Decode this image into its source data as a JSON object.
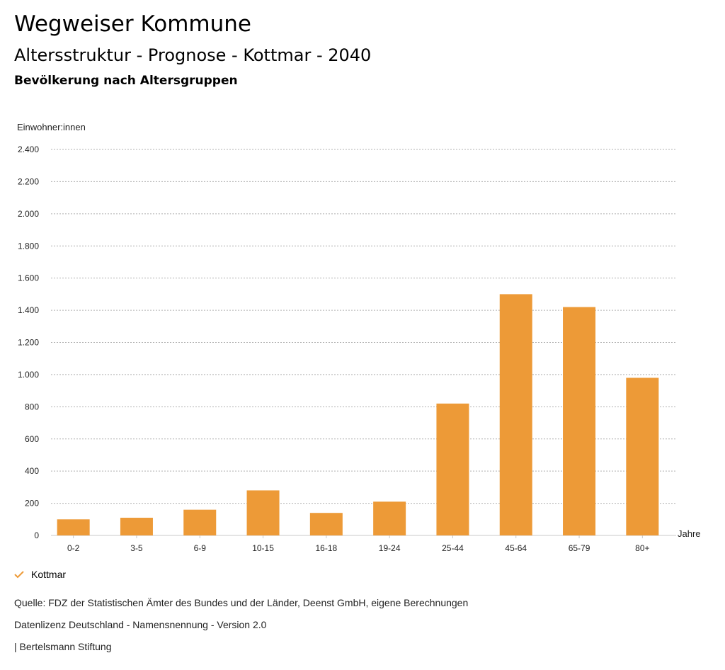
{
  "header": {
    "title": "Wegweiser Kommune",
    "subtitle": "Altersstruktur - Prognose - Kottmar - 2040",
    "heading": "Bevölkerung nach Altersgruppen"
  },
  "chart_data": {
    "type": "bar",
    "ylabel": "Einwohner:innen",
    "xlabel": "Jahre",
    "categories": [
      "0-2",
      "3-5",
      "6-9",
      "10-15",
      "16-18",
      "19-24",
      "25-44",
      "45-64",
      "65-79",
      "80+"
    ],
    "series": [
      {
        "name": "Kottmar",
        "values": [
          100,
          110,
          160,
          280,
          140,
          210,
          820,
          1500,
          1420,
          980
        ]
      }
    ],
    "ylim": [
      0,
      2400
    ],
    "yticks": [
      0,
      200,
      400,
      600,
      800,
      1000,
      1200,
      1400,
      1600,
      1800,
      2000,
      2200,
      2400
    ],
    "ytick_labels": [
      "0",
      "200",
      "400",
      "600",
      "800",
      "1.000",
      "1.200",
      "1.400",
      "1.600",
      "1.800",
      "2.000",
      "2.200",
      "2.400"
    ],
    "bar_color": "#ed9a37",
    "grid": true,
    "legend_position": "bottom-left"
  },
  "legend": {
    "label": "Kottmar"
  },
  "footer": {
    "source": "Quelle: FDZ der Statistischen Ämter des Bundes und der Länder, Deenst GmbH, eigene Berechnungen",
    "license": "Datenlizenz Deutschland - Namensnennung - Version 2.0",
    "publisher": "| Bertelsmann Stiftung"
  }
}
